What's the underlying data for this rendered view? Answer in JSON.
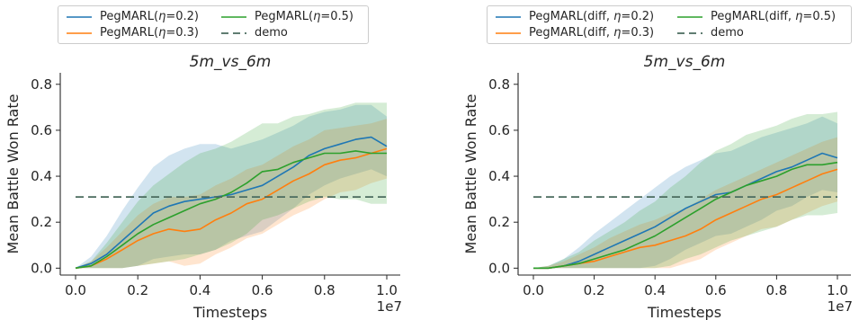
{
  "chart_data": [
    {
      "type": "line",
      "title": "5m_vs_6m",
      "xlabel": "Timesteps",
      "ylabel": "Mean Battle Won Rate",
      "x_exponent_label": "1e7",
      "xlim": [
        0.0,
        1.0
      ],
      "ylim": [
        -0.03,
        0.85
      ],
      "x_ticks": [
        "0.0",
        "0.2",
        "0.4",
        "0.6",
        "0.8",
        "1.0"
      ],
      "y_ticks": [
        "0.0",
        "0.2",
        "0.4",
        "0.6",
        "0.8"
      ],
      "legend_placement": "top-center, above plot",
      "grid": false,
      "series": [
        {
          "name": "PegMARL(η=0.2)",
          "legend_prefix": "PegMARL(",
          "legend_greek": "η",
          "legend_suffix": "=0.2)",
          "color": "#1f77b4",
          "style": "solid",
          "x": [
            0.0,
            0.05,
            0.1,
            0.15,
            0.2,
            0.25,
            0.3,
            0.35,
            0.4,
            0.45,
            0.5,
            0.55,
            0.6,
            0.65,
            0.7,
            0.75,
            0.8,
            0.85,
            0.9,
            0.95,
            1.0
          ],
          "y": [
            0.0,
            0.02,
            0.06,
            0.12,
            0.18,
            0.24,
            0.27,
            0.29,
            0.3,
            0.31,
            0.32,
            0.34,
            0.36,
            0.4,
            0.44,
            0.49,
            0.52,
            0.54,
            0.56,
            0.57,
            0.53
          ],
          "band": [
            0.0,
            0.03,
            0.08,
            0.13,
            0.17,
            0.2,
            0.22,
            0.23,
            0.24,
            0.23,
            0.2,
            0.2,
            0.2,
            0.19,
            0.18,
            0.17,
            0.16,
            0.15,
            0.15,
            0.14,
            0.13
          ]
        },
        {
          "name": "PegMARL(η=0.3)",
          "legend_prefix": "PegMARL(",
          "legend_greek": "η",
          "legend_suffix": "=0.3)",
          "color": "#ff7f0e",
          "style": "solid",
          "x": [
            0.0,
            0.05,
            0.1,
            0.15,
            0.2,
            0.25,
            0.3,
            0.35,
            0.4,
            0.45,
            0.5,
            0.55,
            0.6,
            0.65,
            0.7,
            0.75,
            0.8,
            0.85,
            0.9,
            0.95,
            1.0
          ],
          "y": [
            0.0,
            0.01,
            0.04,
            0.08,
            0.12,
            0.15,
            0.17,
            0.16,
            0.17,
            0.21,
            0.24,
            0.28,
            0.3,
            0.34,
            0.38,
            0.41,
            0.45,
            0.47,
            0.48,
            0.5,
            0.52
          ],
          "band": [
            0.0,
            0.02,
            0.05,
            0.08,
            0.11,
            0.13,
            0.14,
            0.15,
            0.15,
            0.15,
            0.15,
            0.15,
            0.15,
            0.15,
            0.15,
            0.15,
            0.15,
            0.14,
            0.14,
            0.13,
            0.13
          ]
        },
        {
          "name": "PegMARL(η=0.5)",
          "legend_prefix": "PegMARL(",
          "legend_greek": "η",
          "legend_suffix": "=0.5)",
          "color": "#2ca02c",
          "style": "solid",
          "x": [
            0.0,
            0.05,
            0.1,
            0.15,
            0.2,
            0.25,
            0.3,
            0.35,
            0.4,
            0.45,
            0.5,
            0.55,
            0.6,
            0.65,
            0.7,
            0.75,
            0.8,
            0.85,
            0.9,
            0.95,
            1.0
          ],
          "y": [
            0.0,
            0.01,
            0.05,
            0.1,
            0.15,
            0.19,
            0.22,
            0.25,
            0.28,
            0.3,
            0.33,
            0.37,
            0.42,
            0.43,
            0.46,
            0.48,
            0.5,
            0.5,
            0.51,
            0.5,
            0.5
          ],
          "band": [
            0.0,
            0.02,
            0.06,
            0.1,
            0.14,
            0.17,
            0.19,
            0.21,
            0.22,
            0.22,
            0.22,
            0.22,
            0.21,
            0.2,
            0.2,
            0.19,
            0.19,
            0.2,
            0.21,
            0.22,
            0.22
          ]
        },
        {
          "name": "demo",
          "color": "#4a6b5e",
          "style": "dashed",
          "x": [
            0.0,
            1.0
          ],
          "y": [
            0.31,
            0.31
          ]
        }
      ]
    },
    {
      "type": "line",
      "title": "5m_vs_6m",
      "xlabel": "Timesteps",
      "ylabel": "Mean Battle Won Rate",
      "x_exponent_label": "1e7",
      "xlim": [
        0.0,
        1.0
      ],
      "ylim": [
        -0.03,
        0.85
      ],
      "x_ticks": [
        "0.0",
        "0.2",
        "0.4",
        "0.6",
        "0.8",
        "1.0"
      ],
      "y_ticks": [
        "0.0",
        "0.2",
        "0.4",
        "0.6",
        "0.8"
      ],
      "legend_placement": "top-center, above plot",
      "grid": false,
      "series": [
        {
          "name": "PegMARL(diff, η=0.2)",
          "legend_prefix": "PegMARL(diff, ",
          "legend_greek": "η",
          "legend_suffix": "=0.2)",
          "color": "#1f77b4",
          "style": "solid",
          "x": [
            0.0,
            0.05,
            0.1,
            0.15,
            0.2,
            0.25,
            0.3,
            0.35,
            0.4,
            0.45,
            0.5,
            0.55,
            0.6,
            0.65,
            0.7,
            0.75,
            0.8,
            0.85,
            0.9,
            0.95,
            1.0
          ],
          "y": [
            0.0,
            0.0,
            0.01,
            0.03,
            0.06,
            0.09,
            0.12,
            0.15,
            0.18,
            0.22,
            0.26,
            0.29,
            0.32,
            0.33,
            0.36,
            0.39,
            0.42,
            0.44,
            0.47,
            0.5,
            0.48
          ],
          "band": [
            0.0,
            0.01,
            0.03,
            0.06,
            0.09,
            0.11,
            0.13,
            0.15,
            0.17,
            0.18,
            0.18,
            0.18,
            0.18,
            0.18,
            0.18,
            0.18,
            0.17,
            0.17,
            0.16,
            0.16,
            0.15
          ]
        },
        {
          "name": "PegMARL(diff, η=0.3)",
          "legend_prefix": "PegMARL(diff, ",
          "legend_greek": "η",
          "legend_suffix": "=0.3)",
          "color": "#ff7f0e",
          "style": "solid",
          "x": [
            0.0,
            0.05,
            0.1,
            0.15,
            0.2,
            0.25,
            0.3,
            0.35,
            0.4,
            0.45,
            0.5,
            0.55,
            0.6,
            0.65,
            0.7,
            0.75,
            0.8,
            0.85,
            0.9,
            0.95,
            1.0
          ],
          "y": [
            0.0,
            0.0,
            0.01,
            0.02,
            0.03,
            0.05,
            0.07,
            0.09,
            0.1,
            0.12,
            0.14,
            0.17,
            0.21,
            0.24,
            0.27,
            0.3,
            0.32,
            0.35,
            0.38,
            0.41,
            0.43
          ],
          "band": [
            0.0,
            0.01,
            0.02,
            0.04,
            0.06,
            0.08,
            0.09,
            0.1,
            0.11,
            0.12,
            0.12,
            0.13,
            0.13,
            0.13,
            0.13,
            0.13,
            0.14,
            0.14,
            0.14,
            0.14,
            0.14
          ]
        },
        {
          "name": "PegMARL(diff, η=0.5)",
          "legend_prefix": "PegMARL(diff, ",
          "legend_greek": "η",
          "legend_suffix": "=0.5)",
          "color": "#2ca02c",
          "style": "solid",
          "x": [
            0.0,
            0.05,
            0.1,
            0.15,
            0.2,
            0.25,
            0.3,
            0.35,
            0.4,
            0.45,
            0.5,
            0.55,
            0.6,
            0.65,
            0.7,
            0.75,
            0.8,
            0.85,
            0.9,
            0.95,
            1.0
          ],
          "y": [
            0.0,
            0.0,
            0.01,
            0.02,
            0.04,
            0.06,
            0.08,
            0.11,
            0.14,
            0.18,
            0.22,
            0.26,
            0.3,
            0.33,
            0.36,
            0.38,
            0.4,
            0.43,
            0.45,
            0.45,
            0.46
          ],
          "band": [
            0.0,
            0.01,
            0.03,
            0.05,
            0.08,
            0.1,
            0.12,
            0.14,
            0.15,
            0.17,
            0.18,
            0.2,
            0.21,
            0.21,
            0.22,
            0.22,
            0.22,
            0.22,
            0.22,
            0.22,
            0.22
          ]
        },
        {
          "name": "demo",
          "color": "#4a6b5e",
          "style": "dashed",
          "x": [
            0.0,
            1.0
          ],
          "y": [
            0.31,
            0.31
          ]
        }
      ]
    }
  ]
}
